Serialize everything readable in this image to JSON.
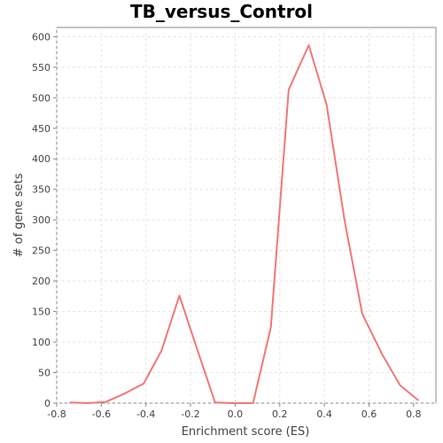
{
  "chart_data": {
    "type": "line",
    "title": "TB_versus_Control",
    "xlabel": "Enrichment score (ES)",
    "ylabel": "# of gene sets",
    "xlim": [
      -0.8,
      0.9
    ],
    "ylim": [
      0,
      615
    ],
    "x_ticks": [
      -0.8,
      -0.6,
      -0.4,
      -0.2,
      0.0,
      0.2,
      0.4,
      0.6,
      0.8
    ],
    "x_tick_labels": [
      "-0.8",
      "-0.6",
      "-0.4",
      "-0.2",
      "0.0",
      "0.2",
      "0.4",
      "0.6",
      "0.8"
    ],
    "y_ticks": [
      0,
      50,
      100,
      150,
      200,
      250,
      300,
      350,
      400,
      450,
      500,
      550,
      600
    ],
    "y_tick_labels": [
      "0",
      "50",
      "100",
      "150",
      "200",
      "250",
      "300",
      "350",
      "400",
      "450",
      "500",
      "550",
      "600"
    ],
    "grid": true,
    "series": [
      {
        "color": "#f07878",
        "x": [
          -0.74,
          -0.66,
          -0.58,
          -0.5,
          -0.41,
          -0.33,
          -0.25,
          -0.17,
          -0.09,
          -0.01,
          0.08,
          0.16,
          0.24,
          0.33,
          0.41,
          0.49,
          0.57,
          0.66,
          0.74,
          0.82
        ],
        "y": [
          1,
          0,
          2,
          15,
          32,
          86,
          176,
          88,
          1,
          0,
          0,
          124,
          513,
          586,
          489,
          300,
          146,
          79,
          29,
          5
        ]
      }
    ]
  }
}
